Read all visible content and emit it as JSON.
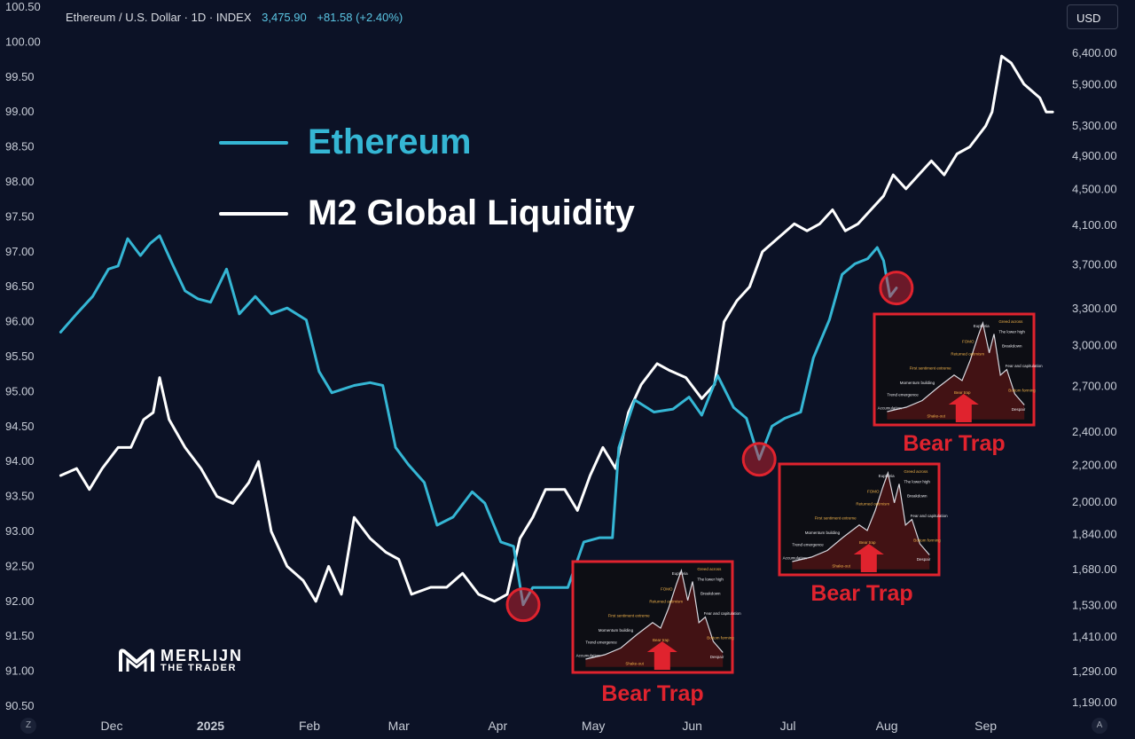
{
  "header": {
    "title": "Ethereum / U.S. Dollar · 1D · INDEX",
    "price": "3,475.90",
    "change": "+81.58 (+2.40%)"
  },
  "currency_button": "USD",
  "logo": {
    "line1": "MERLIJN",
    "line2": "THE TRADER",
    "icon": "merlijn-m-logo"
  },
  "corner_buttons": {
    "left": "Z",
    "right": "A"
  },
  "colors": {
    "background": "#0c1226",
    "ethereum": "#35b6d4",
    "m2": "#ffffff",
    "bear_trap": "#e0232e"
  },
  "chart_data": {
    "type": "line",
    "x_labels": [
      "Dec",
      "2025",
      "Feb",
      "Mar",
      "Apr",
      "May",
      "Jun",
      "Jul",
      "Aug",
      "Sep"
    ],
    "left_axis_ticks": [
      "100.50",
      "100.00",
      "99.50",
      "99.00",
      "98.50",
      "98.00",
      "97.50",
      "97.00",
      "96.50",
      "96.00",
      "95.50",
      "95.00",
      "94.50",
      "94.00",
      "93.50",
      "93.00",
      "92.50",
      "92.00",
      "91.50",
      "91.00",
      "90.50"
    ],
    "left_axis_range": [
      90.5,
      100.5
    ],
    "right_axis_ticks": [
      "6,400.00",
      "5,900.00",
      "5,300.00",
      "4,900.00",
      "4,500.00",
      "4,100.00",
      "3,700.00",
      "3,300.00",
      "3,000.00",
      "2,700.00",
      "2,400.00",
      "2,200.00",
      "2,000.00",
      "1,840.00",
      "1,680.00",
      "1,530.00",
      "1,410.00",
      "1,290.00",
      "1,190.00"
    ],
    "right_axis_scale": "log",
    "series": [
      {
        "name": "Ethereum",
        "axis": "right",
        "color": "#35b6d4",
        "points": [
          [
            "2024-11-15",
            3100
          ],
          [
            "2024-11-20",
            3250
          ],
          [
            "2024-11-25",
            3400
          ],
          [
            "2024-11-30",
            3650
          ],
          [
            "2024-12-03",
            3680
          ],
          [
            "2024-12-06",
            3950
          ],
          [
            "2024-12-10",
            3780
          ],
          [
            "2024-12-13",
            3900
          ],
          [
            "2024-12-16",
            3980
          ],
          [
            "2024-12-20",
            3700
          ],
          [
            "2024-12-24",
            3450
          ],
          [
            "2024-12-28",
            3380
          ],
          [
            "2025-01-01",
            3350
          ],
          [
            "2025-01-06",
            3650
          ],
          [
            "2025-01-10",
            3250
          ],
          [
            "2025-01-15",
            3400
          ],
          [
            "2025-01-20",
            3250
          ],
          [
            "2025-01-25",
            3300
          ],
          [
            "2025-01-31",
            3200
          ],
          [
            "2025-02-04",
            2800
          ],
          [
            "2025-02-08",
            2650
          ],
          [
            "2025-02-15",
            2700
          ],
          [
            "2025-02-20",
            2720
          ],
          [
            "2025-02-24",
            2700
          ],
          [
            "2025-02-28",
            2300
          ],
          [
            "2025-03-04",
            2200
          ],
          [
            "2025-03-09",
            2100
          ],
          [
            "2025-03-13",
            1880
          ],
          [
            "2025-03-18",
            1920
          ],
          [
            "2025-03-24",
            2050
          ],
          [
            "2025-03-28",
            1990
          ],
          [
            "2025-04-02",
            1800
          ],
          [
            "2025-04-06",
            1780
          ],
          [
            "2025-04-09",
            1530
          ],
          [
            "2025-04-12",
            1600
          ],
          [
            "2025-04-18",
            1600
          ],
          [
            "2025-04-23",
            1600
          ],
          [
            "2025-04-28",
            1800
          ],
          [
            "2025-05-03",
            1820
          ],
          [
            "2025-05-07",
            1820
          ],
          [
            "2025-05-09",
            2300
          ],
          [
            "2025-05-14",
            2600
          ],
          [
            "2025-05-20",
            2520
          ],
          [
            "2025-05-26",
            2540
          ],
          [
            "2025-05-31",
            2620
          ],
          [
            "2025-06-04",
            2500
          ],
          [
            "2025-06-09",
            2770
          ],
          [
            "2025-06-14",
            2550
          ],
          [
            "2025-06-18",
            2480
          ],
          [
            "2025-06-22",
            2230
          ],
          [
            "2025-06-26",
            2430
          ],
          [
            "2025-06-30",
            2480
          ],
          [
            "2025-07-05",
            2520
          ],
          [
            "2025-07-09",
            2900
          ],
          [
            "2025-07-14",
            3200
          ],
          [
            "2025-07-18",
            3600
          ],
          [
            "2025-07-22",
            3700
          ],
          [
            "2025-07-26",
            3750
          ],
          [
            "2025-07-29",
            3860
          ],
          [
            "2025-07-31",
            3730
          ],
          [
            "2025-08-02",
            3400
          ],
          [
            "2025-08-04",
            3475.9
          ]
        ]
      },
      {
        "name": "M2 Global Liquidity",
        "axis": "left",
        "color": "#ffffff",
        "points": [
          [
            "2024-11-15",
            93.8
          ],
          [
            "2024-11-20",
            93.9
          ],
          [
            "2024-11-24",
            93.6
          ],
          [
            "2024-11-28",
            93.9
          ],
          [
            "2024-12-03",
            94.2
          ],
          [
            "2024-12-07",
            94.2
          ],
          [
            "2024-12-11",
            94.6
          ],
          [
            "2024-12-14",
            94.7
          ],
          [
            "2024-12-16",
            95.2
          ],
          [
            "2024-12-19",
            94.6
          ],
          [
            "2024-12-24",
            94.2
          ],
          [
            "2024-12-29",
            93.9
          ],
          [
            "2025-01-03",
            93.5
          ],
          [
            "2025-01-08",
            93.4
          ],
          [
            "2025-01-13",
            93.7
          ],
          [
            "2025-01-16",
            94.0
          ],
          [
            "2025-01-20",
            93.0
          ],
          [
            "2025-01-25",
            92.5
          ],
          [
            "2025-01-30",
            92.3
          ],
          [
            "2025-02-03",
            92.0
          ],
          [
            "2025-02-07",
            92.5
          ],
          [
            "2025-02-11",
            92.1
          ],
          [
            "2025-02-15",
            93.2
          ],
          [
            "2025-02-20",
            92.9
          ],
          [
            "2025-02-25",
            92.7
          ],
          [
            "2025-03-01",
            92.6
          ],
          [
            "2025-03-05",
            92.1
          ],
          [
            "2025-03-11",
            92.2
          ],
          [
            "2025-03-16",
            92.2
          ],
          [
            "2025-03-21",
            92.4
          ],
          [
            "2025-03-26",
            92.1
          ],
          [
            "2025-03-31",
            92.0
          ],
          [
            "2025-04-04",
            92.1
          ],
          [
            "2025-04-08",
            92.9
          ],
          [
            "2025-04-12",
            93.2
          ],
          [
            "2025-04-16",
            93.6
          ],
          [
            "2025-04-22",
            93.6
          ],
          [
            "2025-04-26",
            93.3
          ],
          [
            "2025-04-30",
            93.8
          ],
          [
            "2025-05-04",
            94.2
          ],
          [
            "2025-05-08",
            93.9
          ],
          [
            "2025-05-12",
            94.7
          ],
          [
            "2025-05-16",
            95.1
          ],
          [
            "2025-05-21",
            95.4
          ],
          [
            "2025-05-25",
            95.3
          ],
          [
            "2025-05-30",
            95.2
          ],
          [
            "2025-06-04",
            94.9
          ],
          [
            "2025-06-08",
            95.1
          ],
          [
            "2025-06-11",
            96.0
          ],
          [
            "2025-06-15",
            96.3
          ],
          [
            "2025-06-19",
            96.5
          ],
          [
            "2025-06-23",
            97.0
          ],
          [
            "2025-06-28",
            97.2
          ],
          [
            "2025-07-03",
            97.4
          ],
          [
            "2025-07-07",
            97.3
          ],
          [
            "2025-07-11",
            97.4
          ],
          [
            "2025-07-15",
            97.6
          ],
          [
            "2025-07-19",
            97.3
          ],
          [
            "2025-07-23",
            97.4
          ],
          [
            "2025-07-27",
            97.6
          ],
          [
            "2025-07-31",
            97.8
          ],
          [
            "2025-08-03",
            98.1
          ],
          [
            "2025-08-07",
            97.9
          ],
          [
            "2025-08-11",
            98.1
          ],
          [
            "2025-08-15",
            98.3
          ],
          [
            "2025-08-19",
            98.1
          ],
          [
            "2025-08-23",
            98.4
          ],
          [
            "2025-08-27",
            98.5
          ],
          [
            "2025-09-01",
            98.8
          ],
          [
            "2025-09-03",
            99.0
          ],
          [
            "2025-09-06",
            99.8
          ],
          [
            "2025-09-09",
            99.7
          ],
          [
            "2025-09-13",
            99.4
          ],
          [
            "2025-09-18",
            99.2
          ],
          [
            "2025-09-20",
            99.0
          ],
          [
            "2025-09-22",
            99.0
          ]
        ]
      }
    ],
    "annotations": [
      {
        "label": "Bear Trap",
        "date": "2025-04-09",
        "value": 1530
      },
      {
        "label": "Bear Trap",
        "date": "2025-06-22",
        "value": 2230
      },
      {
        "label": "Bear Trap",
        "date": "2025-08-04",
        "value": 3475.9
      }
    ],
    "inset_labels": [
      "Euphoria",
      "Greed across",
      "The lower high",
      "FOMO",
      "Breakdown",
      "Returned optimism",
      "Fear and capitulation",
      "First sentiment extreme",
      "Momentum building",
      "Bottom forming",
      "Trend emergence",
      "Bear trap",
      "Accumulation",
      "Shake-out",
      "Despair"
    ]
  }
}
